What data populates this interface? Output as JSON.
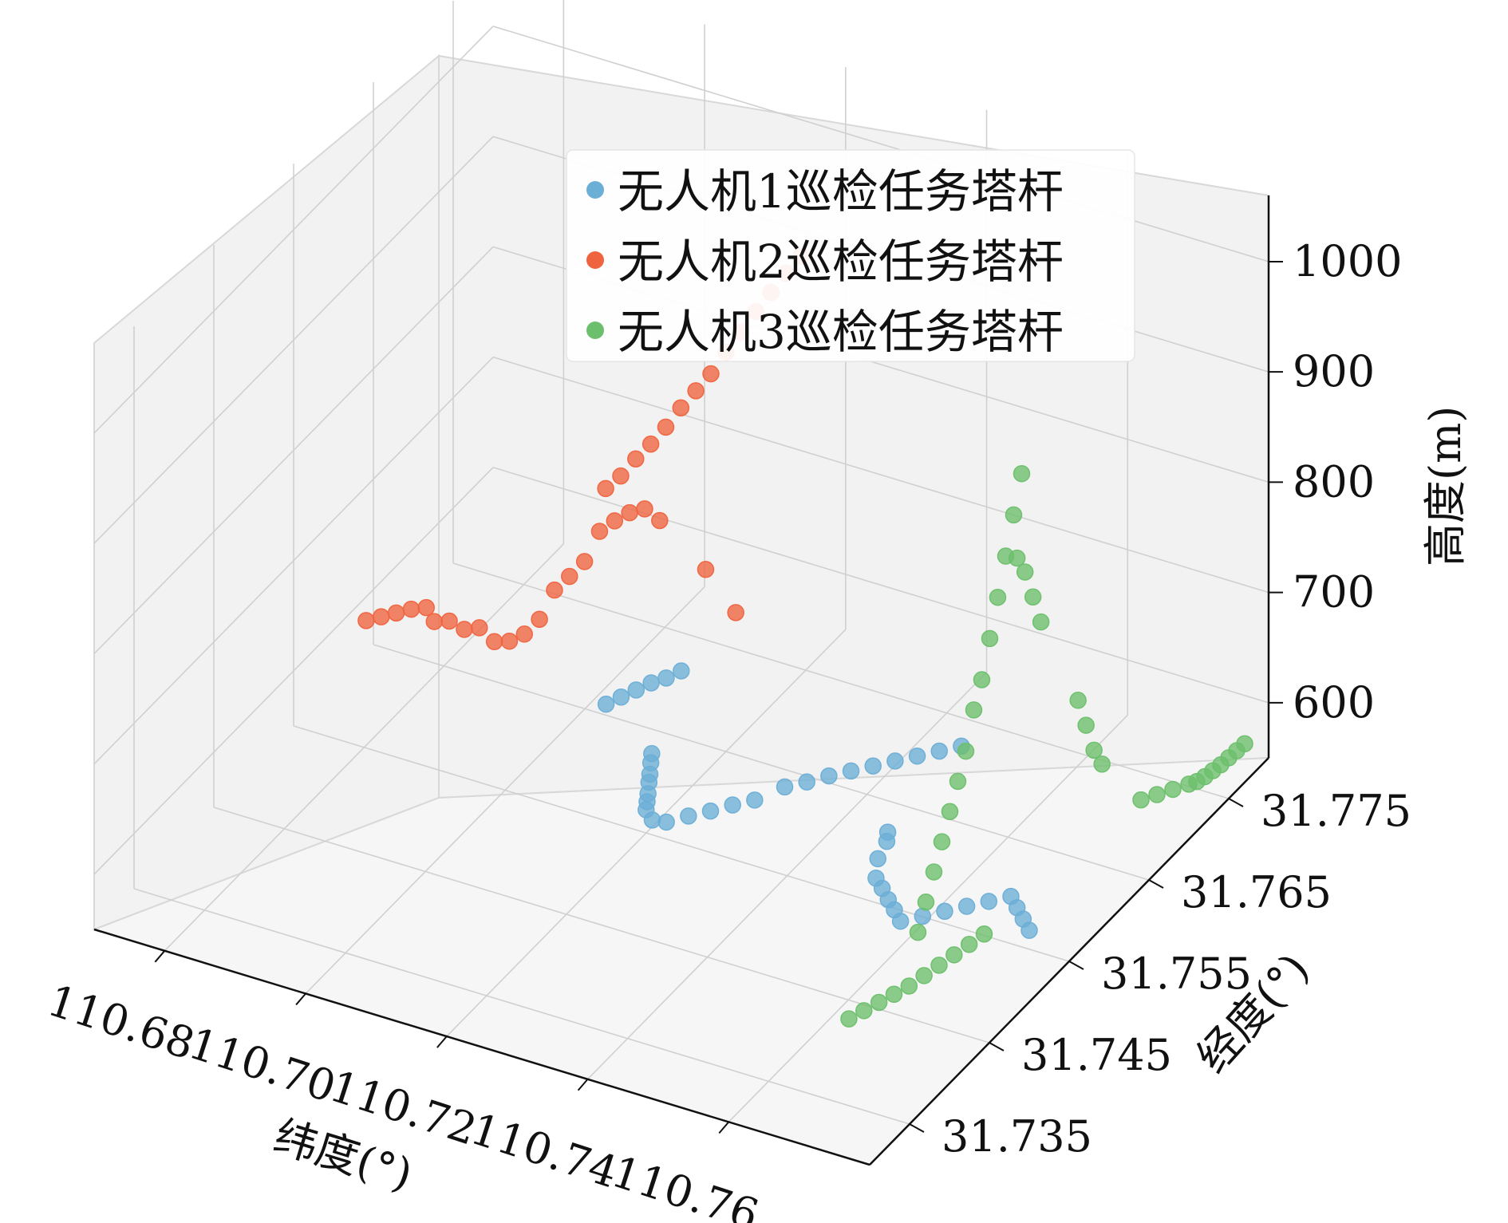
{
  "chart_data": {
    "type": "scatter",
    "dimensions": "3d",
    "xlabel": "纬度(°)",
    "ylabel": "经度(°)",
    "zlabel": "高度(m)",
    "x_ticks": [
      "110.68",
      "110.70",
      "110.72",
      "110.74",
      "110.76"
    ],
    "y_ticks": [
      "31.735",
      "31.745",
      "31.755",
      "31.765",
      "31.775"
    ],
    "z_ticks": [
      "600",
      "700",
      "800",
      "900",
      "1000"
    ],
    "xlim": [
      110.67,
      110.78
    ],
    "ylim": [
      31.73,
      31.78
    ],
    "zlim": [
      550,
      1060
    ],
    "legend_position": "upper-center",
    "grid": true,
    "series": [
      {
        "name": "无人机1巡检任务塔杆",
        "color": "#6baed6",
        "points": [
          [
            110.703,
            31.765,
            560
          ],
          [
            110.704,
            31.766,
            561
          ],
          [
            110.705,
            31.767,
            562
          ],
          [
            110.706,
            31.768,
            563
          ],
          [
            110.707,
            31.769,
            562
          ],
          [
            110.708,
            31.77,
            563
          ],
          [
            110.714,
            31.761,
            566
          ],
          [
            110.715,
            31.76,
            567
          ],
          [
            110.716,
            31.759,
            566
          ],
          [
            110.717,
            31.758,
            568
          ],
          [
            110.718,
            31.757,
            567
          ],
          [
            110.719,
            31.756,
            569
          ],
          [
            110.72,
            31.755,
            571
          ],
          [
            110.722,
            31.754,
            573
          ],
          [
            110.724,
            31.754,
            575
          ],
          [
            110.726,
            31.755,
            577
          ],
          [
            110.728,
            31.756,
            578
          ],
          [
            110.73,
            31.757,
            580
          ],
          [
            110.732,
            31.758,
            581
          ],
          [
            110.734,
            31.76,
            582
          ],
          [
            110.736,
            31.761,
            583
          ],
          [
            110.738,
            31.762,
            585
          ],
          [
            110.74,
            31.763,
            586
          ],
          [
            110.742,
            31.764,
            587
          ],
          [
            110.744,
            31.765,
            588
          ],
          [
            110.746,
            31.766,
            589
          ],
          [
            110.748,
            31.767,
            590
          ],
          [
            110.75,
            31.768,
            591
          ],
          [
            110.752,
            31.757,
            598
          ],
          [
            110.753,
            31.756,
            599
          ],
          [
            110.754,
            31.754,
            600
          ],
          [
            110.756,
            31.752,
            601
          ],
          [
            110.758,
            31.751,
            603
          ],
          [
            110.76,
            31.75,
            604
          ],
          [
            110.762,
            31.749,
            606
          ],
          [
            110.764,
            31.748,
            607
          ],
          [
            110.766,
            31.749,
            608
          ],
          [
            110.768,
            31.75,
            609
          ],
          [
            110.77,
            31.751,
            610
          ],
          [
            110.772,
            31.752,
            611
          ],
          [
            110.774,
            31.753,
            612
          ],
          [
            110.776,
            31.752,
            613
          ],
          [
            110.778,
            31.751,
            614
          ],
          [
            110.78,
            31.75,
            615
          ]
        ]
      },
      {
        "name": "无人机2巡检任务塔杆",
        "color": "#f0633f",
        "points": [
          [
            110.695,
            31.742,
            790
          ],
          [
            110.696,
            31.743,
            788
          ],
          [
            110.697,
            31.744,
            786
          ],
          [
            110.698,
            31.745,
            784
          ],
          [
            110.699,
            31.746,
            780
          ],
          [
            110.699,
            31.747,
            760
          ],
          [
            110.7,
            31.748,
            755
          ],
          [
            110.701,
            31.749,
            742
          ],
          [
            110.702,
            31.75,
            738
          ],
          [
            110.703,
            31.751,
            720
          ],
          [
            110.704,
            31.752,
            715
          ],
          [
            110.705,
            31.753,
            716
          ],
          [
            110.706,
            31.754,
            724
          ],
          [
            110.707,
            31.755,
            745
          ],
          [
            110.708,
            31.756,
            752
          ],
          [
            110.709,
            31.757,
            760
          ],
          [
            110.71,
            31.758,
            782
          ],
          [
            110.711,
            31.759,
            786
          ],
          [
            110.712,
            31.76,
            788
          ],
          [
            110.713,
            31.761,
            786
          ],
          [
            110.714,
            31.762,
            770
          ],
          [
            110.712,
            31.757,
            832
          ],
          [
            110.713,
            31.758,
            838
          ],
          [
            110.714,
            31.759,
            848
          ],
          [
            110.715,
            31.76,
            856
          ],
          [
            110.716,
            31.761,
            866
          ],
          [
            110.717,
            31.762,
            878
          ],
          [
            110.718,
            31.763,
            888
          ],
          [
            110.719,
            31.764,
            898
          ],
          [
            110.72,
            31.765,
            912
          ],
          [
            110.721,
            31.766,
            925
          ],
          [
            110.722,
            31.767,
            938
          ],
          [
            110.723,
            31.768,
            950
          ],
          [
            110.724,
            31.769,
            962
          ],
          [
            110.725,
            31.77,
            972
          ],
          [
            110.716,
            31.766,
            700
          ],
          [
            110.718,
            31.768,
            650
          ]
        ]
      },
      {
        "name": "无人机3巡检任务塔杆",
        "color": "#6cbf6c",
        "points": [
          [
            110.768,
            31.738,
            600
          ],
          [
            110.769,
            31.739,
            602
          ],
          [
            110.77,
            31.74,
            604
          ],
          [
            110.771,
            31.741,
            606
          ],
          [
            110.772,
            31.742,
            608
          ],
          [
            110.773,
            31.743,
            612
          ],
          [
            110.774,
            31.744,
            616
          ],
          [
            110.775,
            31.745,
            620
          ],
          [
            110.776,
            31.746,
            624
          ],
          [
            110.777,
            31.747,
            628
          ],
          [
            110.771,
            31.744,
            640
          ],
          [
            110.771,
            31.745,
            660
          ],
          [
            110.771,
            31.746,
            680
          ],
          [
            110.771,
            31.747,
            700
          ],
          [
            110.771,
            31.748,
            720
          ],
          [
            110.771,
            31.749,
            740
          ],
          [
            110.771,
            31.75,
            760
          ],
          [
            110.771,
            31.751,
            790
          ],
          [
            110.771,
            31.752,
            810
          ],
          [
            110.771,
            31.753,
            840
          ],
          [
            110.771,
            31.754,
            870
          ],
          [
            110.771,
            31.755,
            900
          ],
          [
            110.771,
            31.756,
            930
          ],
          [
            110.771,
            31.757,
            960
          ],
          [
            110.776,
            31.752,
            930
          ],
          [
            110.776,
            31.753,
            910
          ],
          [
            110.776,
            31.754,
            880
          ],
          [
            110.776,
            31.755,
            850
          ],
          [
            110.779,
            31.757,
            770
          ],
          [
            110.779,
            31.758,
            740
          ],
          [
            110.779,
            31.759,
            710
          ],
          [
            110.779,
            31.76,
            690
          ],
          [
            110.78,
            31.764,
            630
          ],
          [
            110.78,
            31.766,
            620
          ],
          [
            110.78,
            31.768,
            610
          ],
          [
            110.78,
            31.77,
            600
          ],
          [
            110.78,
            31.771,
            595
          ],
          [
            110.78,
            31.772,
            592
          ],
          [
            110.78,
            31.773,
            590
          ],
          [
            110.78,
            31.774,
            588
          ],
          [
            110.78,
            31.775,
            587
          ],
          [
            110.78,
            31.776,
            586
          ],
          [
            110.78,
            31.777,
            585
          ]
        ]
      }
    ]
  }
}
